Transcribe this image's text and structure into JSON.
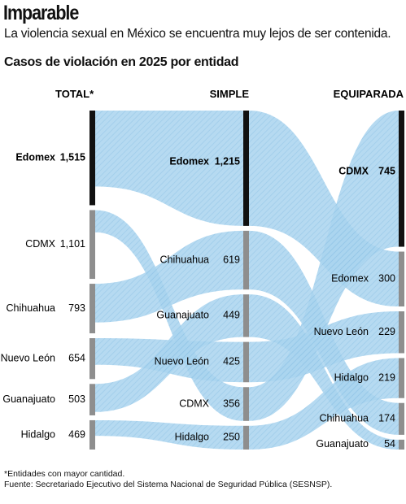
{
  "headline": "Imparable",
  "subhead": "La violencia sexual en México se encuentra muy lejos de  ser contenida.",
  "chart_title": "Casos de violación en 2025 por entidad",
  "footnote": "*Entidades con mayor cantidad.",
  "source": "Fuente: Secretariado Ejecutivo del Sistema Nacional de Seguridad Pública (SESNSP).",
  "colors": {
    "flow": "#a9d4ef",
    "flow_hatch": "#8fc3e6",
    "bar_dark": "#111111",
    "bar_gray": "#8e8e8e"
  },
  "chart_data": {
    "type": "sankey",
    "columns": [
      {
        "header": "TOTAL*",
        "nodes": [
          {
            "name": "Edomex",
            "value": 1515,
            "value_label": "1,515",
            "highlight": true
          },
          {
            "name": "CDMX",
            "value": 1101,
            "value_label": "1,101"
          },
          {
            "name": "Chihuahua",
            "value": 793,
            "value_label": "793"
          },
          {
            "name": "Nuevo León",
            "value": 654,
            "value_label": "654"
          },
          {
            "name": "Guanajuato",
            "value": 503,
            "value_label": "503"
          },
          {
            "name": "Hidalgo",
            "value": 469,
            "value_label": "469"
          }
        ]
      },
      {
        "header": "SIMPLE",
        "nodes": [
          {
            "name": "Edomex",
            "value": 1215,
            "value_label": "1,215",
            "highlight": true
          },
          {
            "name": "Chihuahua",
            "value": 619,
            "value_label": "619"
          },
          {
            "name": "Guanajuato",
            "value": 449,
            "value_label": "449"
          },
          {
            "name": "Nuevo León",
            "value": 425,
            "value_label": "425"
          },
          {
            "name": "CDMX",
            "value": 356,
            "value_label": "356"
          },
          {
            "name": "Hidalgo",
            "value": 250,
            "value_label": "250"
          }
        ]
      },
      {
        "header": "EQUIPARADA",
        "nodes": [
          {
            "name": "CDMX",
            "value": 745,
            "value_label": "745",
            "highlight": true
          },
          {
            "name": "Edomex",
            "value": 300,
            "value_label": "300"
          },
          {
            "name": "Nuevo León",
            "value": 229,
            "value_label": "229"
          },
          {
            "name": "Hidalgo",
            "value": 219,
            "value_label": "219"
          },
          {
            "name": "Chihuahua",
            "value": 174,
            "value_label": "174"
          },
          {
            "name": "Guanajuato",
            "value": 54,
            "value_label": "54"
          }
        ]
      }
    ]
  }
}
